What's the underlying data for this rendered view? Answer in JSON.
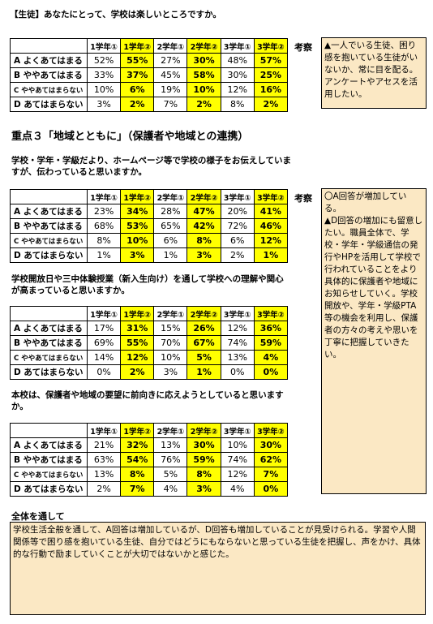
{
  "q0": {
    "text": "【生徒】あなたにとって、学校は楽しいところですか。"
  },
  "headers": [
    "",
    "1学年①",
    "1学年②",
    "2学年①",
    "2学年②",
    "3学年①",
    "3学年②"
  ],
  "row_labels": [
    "A よくあてはまる",
    "B ややあてはまる",
    "C ややあてはまらない",
    "D あてはまらない"
  ],
  "table1": [
    [
      "52%",
      "55%",
      "27%",
      "30%",
      "48%",
      "57%"
    ],
    [
      "33%",
      "37%",
      "45%",
      "58%",
      "30%",
      "25%"
    ],
    [
      "10%",
      "6%",
      "19%",
      "10%",
      "12%",
      "16%"
    ],
    [
      "3%",
      "2%",
      "7%",
      "2%",
      "8%",
      "2%"
    ]
  ],
  "kousatsu_label": "考察",
  "comment1": "▲一人でいる生徒、困り感を抱いている生徒がいないか、常に目を配る。アンケートやアセスを活用したい。",
  "section_title": "重点３「地域とともに」（保護者や地域との連携）",
  "q1": {
    "text": "学校・学年・学級だより、ホームページ等で学校の様子をお伝えしていますが、伝わっていると思いますか。"
  },
  "table2": [
    [
      "23%",
      "34%",
      "28%",
      "47%",
      "20%",
      "41%"
    ],
    [
      "68%",
      "53%",
      "65%",
      "42%",
      "72%",
      "46%"
    ],
    [
      "8%",
      "10%",
      "6%",
      "8%",
      "6%",
      "12%"
    ],
    [
      "1%",
      "3%",
      "1%",
      "3%",
      "2%",
      "1%"
    ]
  ],
  "comment2": "〇A回答が増加している。\n▲D回答の増加にも留意したい。職員全体で、学校・学年・学級通信の発行やHPを活用して学校で行われていることをより具体的に保護者や地域にお知らせしていく。学校開放や、学年・学級PTA等の機会を利用し、保護者の方々の考えや思いを丁寧に把握していきたい。",
  "q2": {
    "text": "学校開放日や三中体験授業（新入生向け）を通して学校への理解や関心が高まっていると思いますか。"
  },
  "table3": [
    [
      "17%",
      "31%",
      "15%",
      "26%",
      "12%",
      "36%"
    ],
    [
      "69%",
      "55%",
      "70%",
      "67%",
      "74%",
      "59%"
    ],
    [
      "14%",
      "12%",
      "10%",
      "5%",
      "13%",
      "4%"
    ],
    [
      "0%",
      "2%",
      "3%",
      "1%",
      "0%",
      "0%"
    ]
  ],
  "q3": {
    "text": "本校は、保護者や地域の要望に前向きに応えようとしていると思いますか。"
  },
  "table4": [
    [
      "21%",
      "32%",
      "13%",
      "30%",
      "10%",
      "30%"
    ],
    [
      "63%",
      "54%",
      "76%",
      "59%",
      "74%",
      "62%"
    ],
    [
      "13%",
      "8%",
      "5%",
      "8%",
      "12%",
      "7%"
    ],
    [
      "2%",
      "7%",
      "4%",
      "3%",
      "4%",
      "0%"
    ]
  ],
  "summary_title": "全体を通して",
  "summary_text": "学校生活全般を通して、A回答は増加しているが、D回答も増加していることが見受けられる。学習や人間関係等で困り感を抱いている生徒、自分ではどうにもならないと思っている生徒を把握し、声をかけ、具体的な行動で励ましていくことが大切ではないかと感じた。",
  "highlight_color": "#ffff00",
  "comment_bg": "#fbe8c4"
}
